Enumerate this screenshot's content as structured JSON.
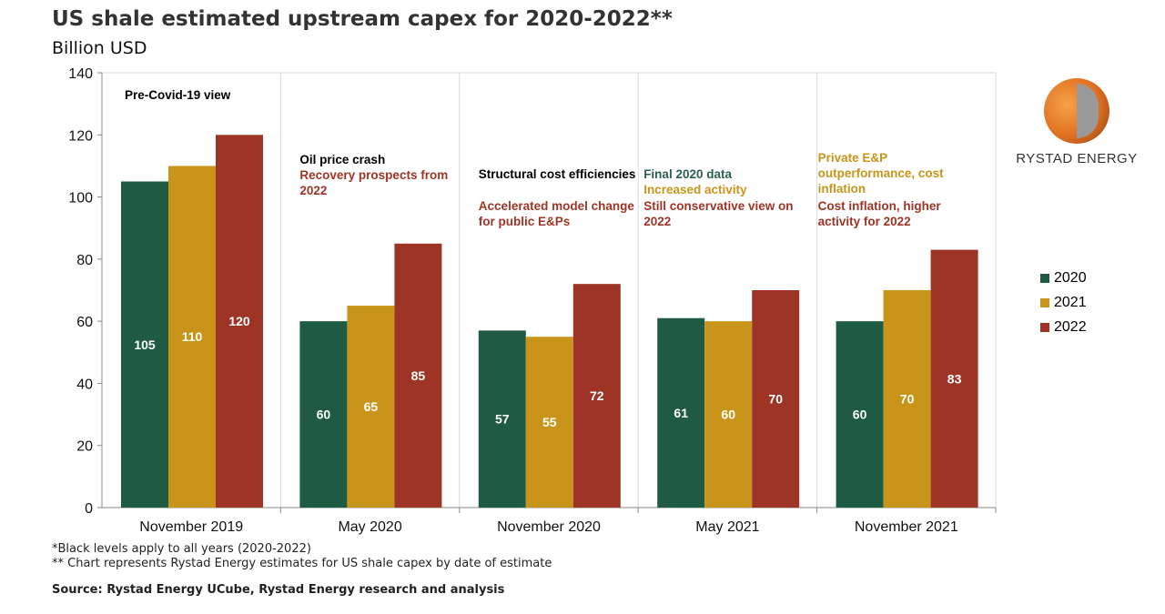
{
  "chart_data": {
    "type": "bar",
    "title": "US shale estimated upstream capex for 2020-2022**",
    "subtitle": "Billion USD",
    "categories": [
      "November 2019",
      "May 2020",
      "November 2020",
      "May 2021",
      "November 2021"
    ],
    "series": [
      {
        "name": "2020",
        "color": "#1f5a43",
        "values": [
          105,
          60,
          57,
          61,
          60
        ]
      },
      {
        "name": "2021",
        "color": "#c8951a",
        "values": [
          110,
          65,
          55,
          60,
          70
        ]
      },
      {
        "name": "2022",
        "color": "#9e3426",
        "values": [
          120,
          85,
          72,
          70,
          83
        ]
      }
    ],
    "ylim": [
      0,
      140
    ],
    "yticks": [
      0,
      20,
      40,
      60,
      80,
      100,
      120,
      140
    ],
    "grid": "vertical group separators",
    "legend": "right",
    "annotations": [
      [
        {
          "text": "Pre-Covid-19 view",
          "color": "#000000"
        }
      ],
      [
        {
          "text": "Oil price crash",
          "color": "#000000"
        },
        {
          "text": "Recovery prospects from 2022",
          "color": "#9e3426"
        }
      ],
      [
        {
          "text": "Structural cost efficiencies",
          "color": "#000000"
        },
        {
          "text": "Accelerated model change for public E&Ps",
          "color": "#9e3426"
        }
      ],
      [
        {
          "text": "Final 2020 data",
          "color": "#2a6049"
        },
        {
          "text": "Increased activity",
          "color": "#c8951a"
        },
        {
          "text": "Still conservative view on 2022",
          "color": "#9e3426"
        }
      ],
      [
        {
          "text": "Private E&P outperformance, cost inflation",
          "color": "#c8951a"
        },
        {
          "text": "Cost inflation, higher activity for 2022",
          "color": "#9e3426"
        }
      ]
    ]
  },
  "footnotes": [
    "*Black levels apply to all years (2020-2022)",
    "** Chart represents Rystad Energy estimates for US shale capex by date of estimate"
  ],
  "source": "Source: Rystad Energy UCube, Rystad Energy research and analysis",
  "logo": {
    "text": "RYSTAD ENERGY"
  }
}
